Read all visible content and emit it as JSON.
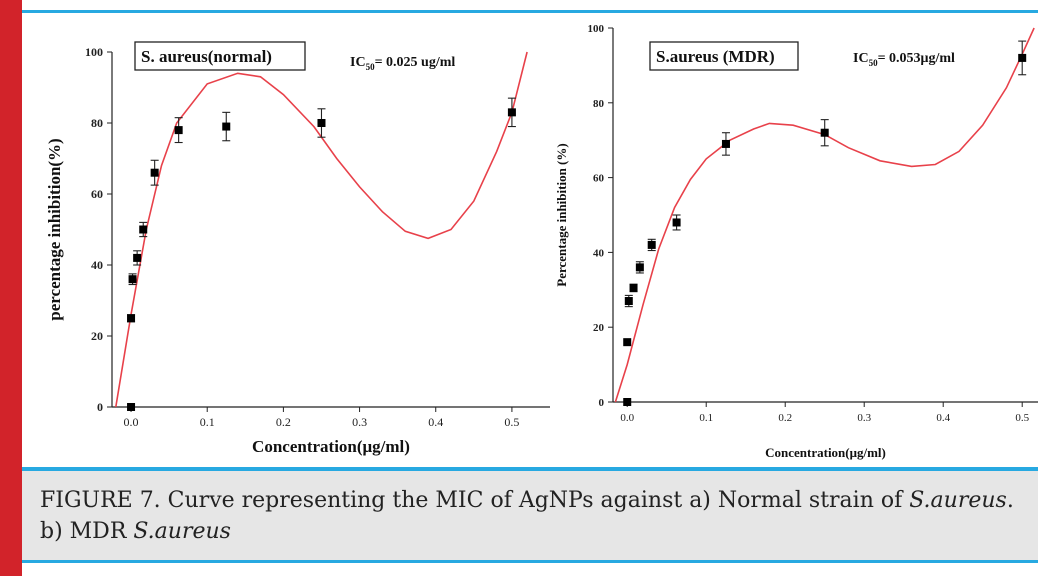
{
  "caption": {
    "prefix": "FIGURE 7. Curve representing the MIC of AgNPs against a) Normal strain of ",
    "italic1": "S.aureus",
    "middle": ". b) MDR ",
    "italic2": "S.aureus"
  },
  "colors": {
    "left_bar": "#d2232a",
    "rule": "#27a9e1",
    "caption_bg": "#e6e6e6",
    "curve": "#e8414a",
    "marker": "#000000"
  },
  "chart_data": [
    {
      "type": "scatter",
      "title": "S. aureus(normal)",
      "ic50_label": "IC",
      "ic50_sub": "50",
      "ic50_value": "= 0.025 ug/ml",
      "xlabel": "Concentration(μg/ml)",
      "ylabel": "percentage inhibition(%)",
      "xlim": [
        -0.025,
        0.55
      ],
      "ylim": [
        0,
        100
      ],
      "x_ticks": [
        0.0,
        0.1,
        0.2,
        0.3,
        0.4,
        0.5
      ],
      "x_tick_labels": [
        "0.0",
        "0.1",
        "0.2",
        "0.3",
        "0.4",
        "0.5"
      ],
      "y_ticks": [
        0,
        20,
        40,
        60,
        80,
        100
      ],
      "y_tick_labels": [
        "0",
        "20",
        "40",
        "60",
        "80",
        "100"
      ],
      "points": [
        {
          "x": 0.0,
          "y": 0,
          "err": 0
        },
        {
          "x": 0.0,
          "y": 25,
          "err": 1
        },
        {
          "x": 0.002,
          "y": 36,
          "err": 1.5
        },
        {
          "x": 0.008,
          "y": 42,
          "err": 2
        },
        {
          "x": 0.016,
          "y": 50,
          "err": 2
        },
        {
          "x": 0.031,
          "y": 66,
          "err": 3.5
        },
        {
          "x": 0.0625,
          "y": 78,
          "err": 3.5
        },
        {
          "x": 0.125,
          "y": 79,
          "err": 4
        },
        {
          "x": 0.25,
          "y": 80,
          "err": 4
        },
        {
          "x": 0.5,
          "y": 83,
          "err": 4
        }
      ],
      "fit_curve": [
        [
          -0.02,
          0
        ],
        [
          0.0,
          26
        ],
        [
          0.02,
          50
        ],
        [
          0.04,
          68
        ],
        [
          0.06,
          80
        ],
        [
          0.1,
          91
        ],
        [
          0.14,
          94
        ],
        [
          0.17,
          93
        ],
        [
          0.2,
          88
        ],
        [
          0.24,
          79
        ],
        [
          0.27,
          70
        ],
        [
          0.3,
          62
        ],
        [
          0.33,
          55
        ],
        [
          0.36,
          49.5
        ],
        [
          0.39,
          47.5
        ],
        [
          0.42,
          50
        ],
        [
          0.45,
          58
        ],
        [
          0.48,
          72
        ],
        [
          0.5,
          83
        ],
        [
          0.52,
          100
        ]
      ]
    },
    {
      "type": "scatter",
      "title": "S.aureus (MDR)",
      "ic50_label": "IC",
      "ic50_sub": "50",
      "ic50_value": "= 0.053μg/ml",
      "xlabel": "Concentration(μg/ml)",
      "ylabel": "Percentage inhibition (%)",
      "xlim": [
        -0.018,
        0.52
      ],
      "ylim": [
        0,
        100
      ],
      "x_ticks": [
        0.0,
        0.1,
        0.2,
        0.3,
        0.4,
        0.5
      ],
      "x_tick_labels": [
        "0.0",
        "0.1",
        "0.2",
        "0.3",
        "0.4",
        "0.5"
      ],
      "y_ticks": [
        0,
        20,
        40,
        60,
        80,
        100
      ],
      "y_tick_labels": [
        "0",
        "20",
        "40",
        "60",
        "80",
        "100"
      ],
      "points": [
        {
          "x": 0.0,
          "y": 0,
          "err": 0
        },
        {
          "x": 0.0,
          "y": 16,
          "err": 0
        },
        {
          "x": 0.002,
          "y": 27,
          "err": 1.5
        },
        {
          "x": 0.008,
          "y": 30.5,
          "err": 1
        },
        {
          "x": 0.016,
          "y": 36,
          "err": 1.5
        },
        {
          "x": 0.031,
          "y": 42,
          "err": 1.5
        },
        {
          "x": 0.0625,
          "y": 48,
          "err": 2
        },
        {
          "x": 0.125,
          "y": 69,
          "err": 3
        },
        {
          "x": 0.25,
          "y": 72,
          "err": 3.5
        },
        {
          "x": 0.5,
          "y": 92,
          "err": 4.5
        }
      ],
      "fit_curve": [
        [
          -0.015,
          0
        ],
        [
          0.0,
          10
        ],
        [
          0.02,
          26
        ],
        [
          0.04,
          41
        ],
        [
          0.06,
          52
        ],
        [
          0.08,
          59.5
        ],
        [
          0.1,
          65
        ],
        [
          0.13,
          70
        ],
        [
          0.16,
          73
        ],
        [
          0.18,
          74.5
        ],
        [
          0.21,
          74
        ],
        [
          0.25,
          71.5
        ],
        [
          0.28,
          68
        ],
        [
          0.32,
          64.5
        ],
        [
          0.36,
          63
        ],
        [
          0.39,
          63.5
        ],
        [
          0.42,
          67
        ],
        [
          0.45,
          74
        ],
        [
          0.48,
          84
        ],
        [
          0.5,
          93
        ],
        [
          0.515,
          100
        ]
      ]
    }
  ]
}
